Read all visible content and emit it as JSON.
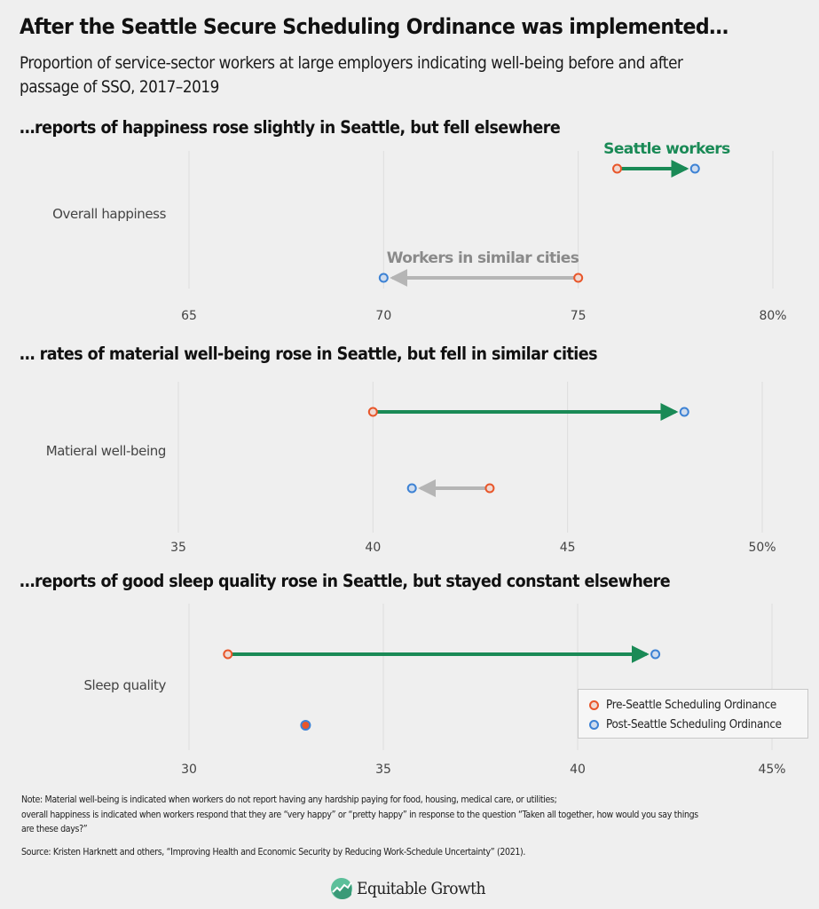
{
  "title": "After the Seattle Secure Scheduling Ordinance was implemented…",
  "subtitle": "Proportion of service-sector workers at large employers indicating well-being before and after passage of SSO, 2017–2019",
  "colors": {
    "pre": "#e8562a",
    "post": "#3d82d4",
    "seattle_arrow": "#1a8a56",
    "similar_arrow": "#b5b5b5",
    "seattle_label": "#1a8a56",
    "similar_label": "#8a8a8a",
    "gridline": "#dddddd",
    "background": "#efefef"
  },
  "chart_data": [
    {
      "type": "dumbbell-arrow",
      "heading": "…reports of happiness rose slightly in Seattle, but fell elsewhere",
      "category": "Overall happiness",
      "xlim": [
        65,
        80
      ],
      "ticks": [
        65,
        70,
        75,
        80
      ],
      "tick_labels": [
        "65",
        "70",
        "75",
        "80%"
      ],
      "grid": true,
      "series": [
        {
          "name": "Seattle workers",
          "pre": 76,
          "post": 78,
          "label_shown": true
        },
        {
          "name": "Workers in similar cities",
          "pre": 75,
          "post": 70,
          "label_shown": true
        }
      ]
    },
    {
      "type": "dumbbell-arrow",
      "heading": "… rates of material well-being rose in Seattle, but fell in similar cities",
      "category": "Matieral well-being",
      "xlim": [
        35,
        50
      ],
      "ticks": [
        35,
        40,
        45,
        50
      ],
      "tick_labels": [
        "35",
        "40",
        "45",
        "50%"
      ],
      "grid": true,
      "series": [
        {
          "name": "Seattle workers",
          "pre": 40,
          "post": 48,
          "label_shown": false
        },
        {
          "name": "Workers in similar cities",
          "pre": 43,
          "post": 41,
          "label_shown": false
        }
      ]
    },
    {
      "type": "dumbbell-arrow",
      "heading": "…reports of good sleep quality rose in Seattle, but stayed constant elsewhere",
      "category": "Sleep quality",
      "xlim": [
        30,
        45
      ],
      "ticks": [
        30,
        35,
        40,
        45
      ],
      "tick_labels": [
        "30",
        "35",
        "40",
        "45%"
      ],
      "grid": true,
      "series": [
        {
          "name": "Seattle workers",
          "pre": 31,
          "post": 42,
          "label_shown": false
        },
        {
          "name": "Workers in similar cities",
          "pre": 33,
          "post": 33,
          "label_shown": false
        }
      ],
      "legend": {
        "placement": "bottom-right",
        "items": [
          {
            "label": "Pre-Seattle Scheduling Ordinance",
            "key": "pre"
          },
          {
            "label": "Post-Seattle Scheduling Ordinance",
            "key": "post"
          }
        ]
      }
    }
  ],
  "notes": {
    "note_line1": "Note: Material well-being is indicated when workers do not report having any hardship paying for food, housing, medical care, or utilities;",
    "note_line2": "overall happiness is indicated when workers respond that they are “very happy” or “pretty happy” in response to the question “Taken all together, how would you say things are these days?”",
    "source": "Source: Kristen Harknett and others, “Improving Health and Economic Security by Reducing Work-Schedule Uncertainty” (2021)."
  },
  "logo": {
    "text": "Equitable Growth",
    "icon": "equitable-growth-logo-icon"
  }
}
